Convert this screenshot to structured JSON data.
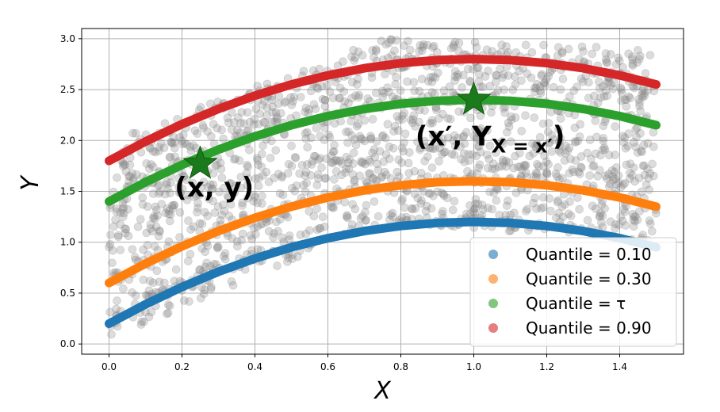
{
  "chart_data": {
    "type": "scatter",
    "title": "",
    "xlabel": "X",
    "ylabel": "Y",
    "xlim": [
      -0.075,
      1.575
    ],
    "ylim": [
      -0.1,
      3.1
    ],
    "x_ticks": [
      0.0,
      0.2,
      0.4,
      0.6,
      0.8,
      1.0,
      1.2,
      1.4
    ],
    "x_tick_labels": [
      "0.0",
      "0.2",
      "0.4",
      "0.6",
      "0.8",
      "1.0",
      "1.2",
      "1.4"
    ],
    "y_ticks": [
      0.0,
      0.5,
      1.0,
      1.5,
      2.0,
      2.5,
      3.0
    ],
    "y_tick_labels": [
      "0.0",
      "0.5",
      "1.0",
      "1.5",
      "2.0",
      "2.5",
      "3.0"
    ],
    "grid": true,
    "legend_position": "lower-right",
    "background_points": {
      "color": "#808080",
      "x_range": [
        0.0,
        1.5
      ],
      "band_low_y": [
        0.05,
        1.2,
        1.0
      ],
      "band_high_y": [
        2.0,
        3.0,
        2.9
      ]
    },
    "series": [
      {
        "name": "Quantile = 0.10",
        "color": "#1f77b4",
        "x": [
          0.0,
          0.1,
          0.2,
          0.3,
          0.4,
          0.5,
          0.6,
          0.7,
          0.8,
          0.9,
          1.0,
          1.1,
          1.2,
          1.3,
          1.4,
          1.5
        ],
        "y": [
          0.2,
          0.39,
          0.56,
          0.71,
          0.84,
          0.95,
          1.04,
          1.11,
          1.16,
          1.19,
          1.2,
          1.19,
          1.16,
          1.11,
          1.04,
          0.95
        ]
      },
      {
        "name": "Quantile = 0.30",
        "color": "#ff7f0e",
        "x": [
          0.0,
          0.1,
          0.2,
          0.3,
          0.4,
          0.5,
          0.6,
          0.7,
          0.8,
          0.9,
          1.0,
          1.1,
          1.2,
          1.3,
          1.4,
          1.5
        ],
        "y": [
          0.6,
          0.79,
          0.96,
          1.11,
          1.24,
          1.35,
          1.44,
          1.51,
          1.56,
          1.59,
          1.6,
          1.59,
          1.56,
          1.51,
          1.44,
          1.35
        ]
      },
      {
        "name": "Quantile = τ",
        "color": "#2ca02c",
        "x": [
          0.0,
          0.1,
          0.2,
          0.3,
          0.4,
          0.5,
          0.6,
          0.7,
          0.8,
          0.9,
          1.0,
          1.1,
          1.2,
          1.3,
          1.4,
          1.5
        ],
        "y": [
          1.4,
          1.59,
          1.76,
          1.91,
          2.04,
          2.15,
          2.24,
          2.31,
          2.36,
          2.39,
          2.4,
          2.39,
          2.36,
          2.31,
          2.24,
          2.15
        ]
      },
      {
        "name": "Quantile = 0.90",
        "color": "#d62728",
        "x": [
          0.0,
          0.1,
          0.2,
          0.3,
          0.4,
          0.5,
          0.6,
          0.7,
          0.8,
          0.9,
          1.0,
          1.1,
          1.2,
          1.3,
          1.4,
          1.5
        ],
        "y": [
          1.8,
          1.99,
          2.16,
          2.31,
          2.44,
          2.55,
          2.64,
          2.71,
          2.76,
          2.79,
          2.8,
          2.79,
          2.76,
          2.71,
          2.64,
          2.55
        ]
      }
    ],
    "markers": [
      {
        "x": 0.25,
        "y": 1.77,
        "color": "#1b7a1b"
      },
      {
        "x": 1.0,
        "y": 2.4,
        "color": "#1b7a1b"
      }
    ],
    "annotations": [
      {
        "main": "(x, y)",
        "x": 0.18,
        "y": 1.45,
        "sub": ""
      },
      {
        "main": "(x′, Y",
        "x": 0.84,
        "y": 1.95,
        "sub": "X = x′",
        "close": ")"
      }
    ]
  }
}
